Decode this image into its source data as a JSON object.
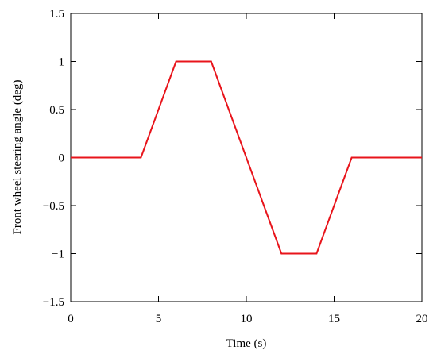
{
  "chart_data": {
    "type": "line",
    "x_label": "Time (s)",
    "y_label": "Front wheel steering angle (deg)",
    "x": [
      0,
      4,
      6,
      8,
      12,
      14,
      16,
      20
    ],
    "values": [
      0,
      0,
      1,
      1,
      -1,
      -1,
      0,
      0
    ],
    "color": "#e8141b",
    "xlim": [
      0,
      20
    ],
    "xticks": [
      0,
      5,
      10,
      15,
      20
    ],
    "ylim": [
      -1.5,
      1.5
    ],
    "yticks": [
      {
        "value": -1.5,
        "label": "−1.5"
      },
      {
        "value": -1,
        "label": "−1"
      },
      {
        "value": -0.5,
        "label": "−0.5"
      },
      0,
      0.5,
      1,
      1.5
    ]
  }
}
